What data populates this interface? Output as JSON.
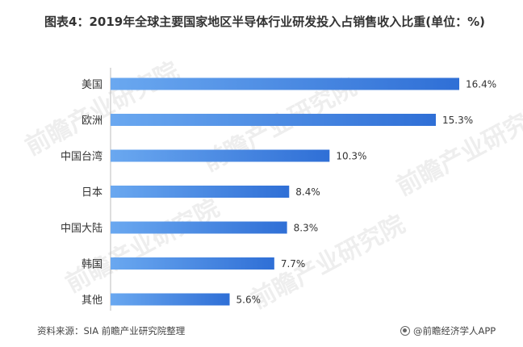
{
  "title": "图表4：2019年全球主要国家地区半导体行业研发投入占销售收入比重(单位：%)",
  "source": "资料来源：SIA 前瞻产业研究院整理",
  "brand": "@前瞻经济学人APP",
  "watermark": "前瞻产业研究院",
  "colors": {
    "bar_light": "#6aa8f0",
    "bar_dark": "#2f6fd6",
    "axis": "#bbbbbb"
  },
  "chart_data": {
    "type": "bar",
    "orientation": "horizontal",
    "title": "图表4：2019年全球主要国家地区半导体行业研发投入占销售收入比重(单位：%)",
    "categories": [
      "美国",
      "欧洲",
      "中国台湾",
      "日本",
      "中国大陆",
      "韩国",
      "其他"
    ],
    "values": [
      16.4,
      15.3,
      10.3,
      8.4,
      8.3,
      7.7,
      5.6
    ],
    "value_labels": [
      "16.4%",
      "15.3%",
      "10.3%",
      "8.4%",
      "8.3%",
      "7.7%",
      "5.6%"
    ],
    "xlim": [
      0,
      16.4
    ],
    "grid": false,
    "legend": "none"
  }
}
